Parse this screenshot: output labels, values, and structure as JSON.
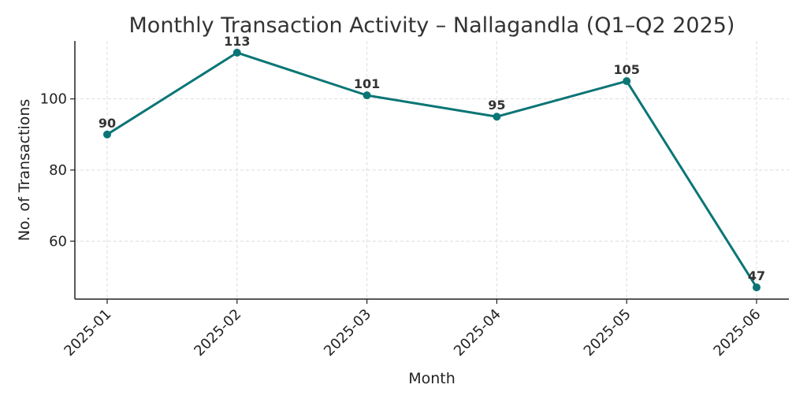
{
  "chart_data": {
    "type": "line",
    "title": "Monthly Transaction Activity – Nallagandla (Q1–Q2 2025)",
    "xlabel": "Month",
    "ylabel": "No. of Transactions",
    "x": [
      "2025-01",
      "2025-02",
      "2025-03",
      "2025-04",
      "2025-05",
      "2025-06"
    ],
    "series": [
      {
        "values": [
          90,
          113,
          101,
          95,
          105,
          47
        ],
        "color": "#0b7576"
      }
    ],
    "data_labels": [
      "90",
      "113",
      "101",
      "95",
      "105",
      "47"
    ],
    "yticks": [
      60,
      80,
      100
    ],
    "ytick_labels": [
      "60",
      "80",
      "100"
    ],
    "ylim": [
      43.7,
      116.3
    ],
    "grid": true,
    "legend": "none",
    "marker": "circle"
  }
}
